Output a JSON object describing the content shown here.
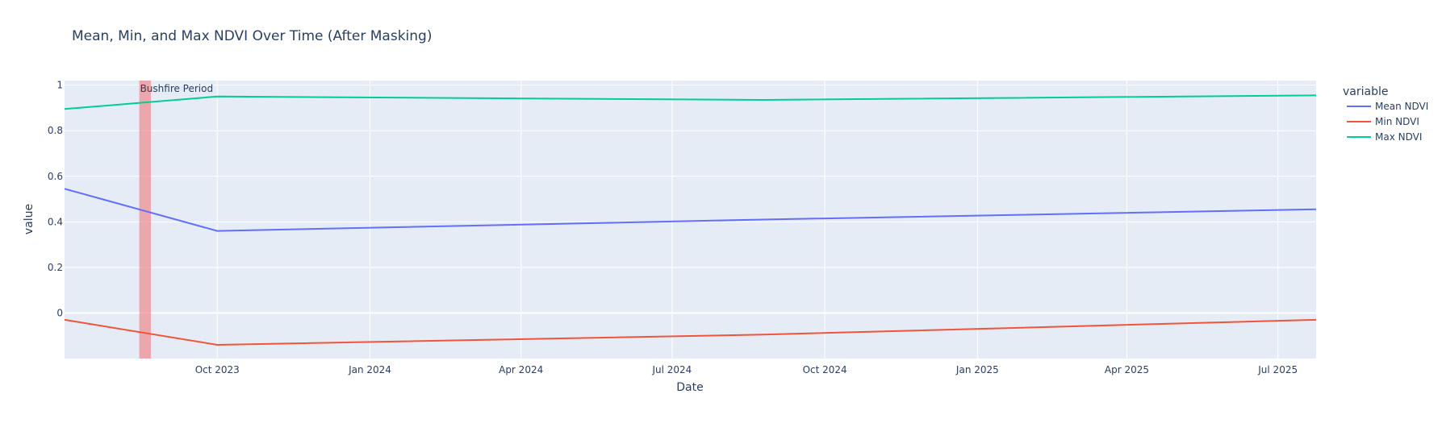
{
  "chart_data": {
    "type": "line",
    "title": "Mean, Min, and Max NDVI Over Time (After Masking)",
    "xlabel": "Date",
    "ylabel": "value",
    "x_type": "date",
    "xlim": [
      "2023-07-01",
      "2025-07-24"
    ],
    "ylim": [
      -0.2,
      1.02
    ],
    "x_tick_dates": [
      "2023-10-01",
      "2024-01-01",
      "2024-04-01",
      "2024-07-01",
      "2024-10-01",
      "2025-01-01",
      "2025-04-01",
      "2025-07-01"
    ],
    "x_tick_labels": [
      "Oct 2023",
      "Jan 2024",
      "Apr 2024",
      "Jul 2024",
      "Oct 2024",
      "Jan 2025",
      "Apr 2025",
      "Jul 2025"
    ],
    "y_ticks": [
      0,
      0.2,
      0.4,
      0.6,
      0.8,
      1
    ],
    "y_tick_labels": [
      "0",
      "0.2",
      "0.4",
      "0.6",
      "0.8",
      "1"
    ],
    "grid": true,
    "legend_title": "variable",
    "legend_position": "right",
    "series": [
      {
        "name": "Mean NDVI",
        "color": "#636efa",
        "x": [
          "2023-07-01",
          "2023-10-01",
          "2024-08-25",
          "2025-07-24"
        ],
        "y": [
          0.545,
          0.36,
          0.41,
          0.455
        ]
      },
      {
        "name": "Min NDVI",
        "color": "#ef553b",
        "x": [
          "2023-07-01",
          "2023-10-01",
          "2024-08-25",
          "2025-07-24"
        ],
        "y": [
          -0.03,
          -0.14,
          -0.095,
          -0.03
        ]
      },
      {
        "name": "Max NDVI",
        "color": "#00cc96",
        "x": [
          "2023-07-01",
          "2023-10-01",
          "2024-08-25",
          "2025-07-24"
        ],
        "y": [
          0.895,
          0.95,
          0.935,
          0.955
        ]
      }
    ],
    "shaded_region": {
      "label": "Bushfire Period",
      "x_start": "2023-08-15",
      "x_end": "2023-08-22",
      "color": "#ef8a8f"
    },
    "colors": {
      "plot_bg": "#e5ecf6",
      "grid": "#ffffff",
      "text": "#2a3f5f"
    }
  }
}
